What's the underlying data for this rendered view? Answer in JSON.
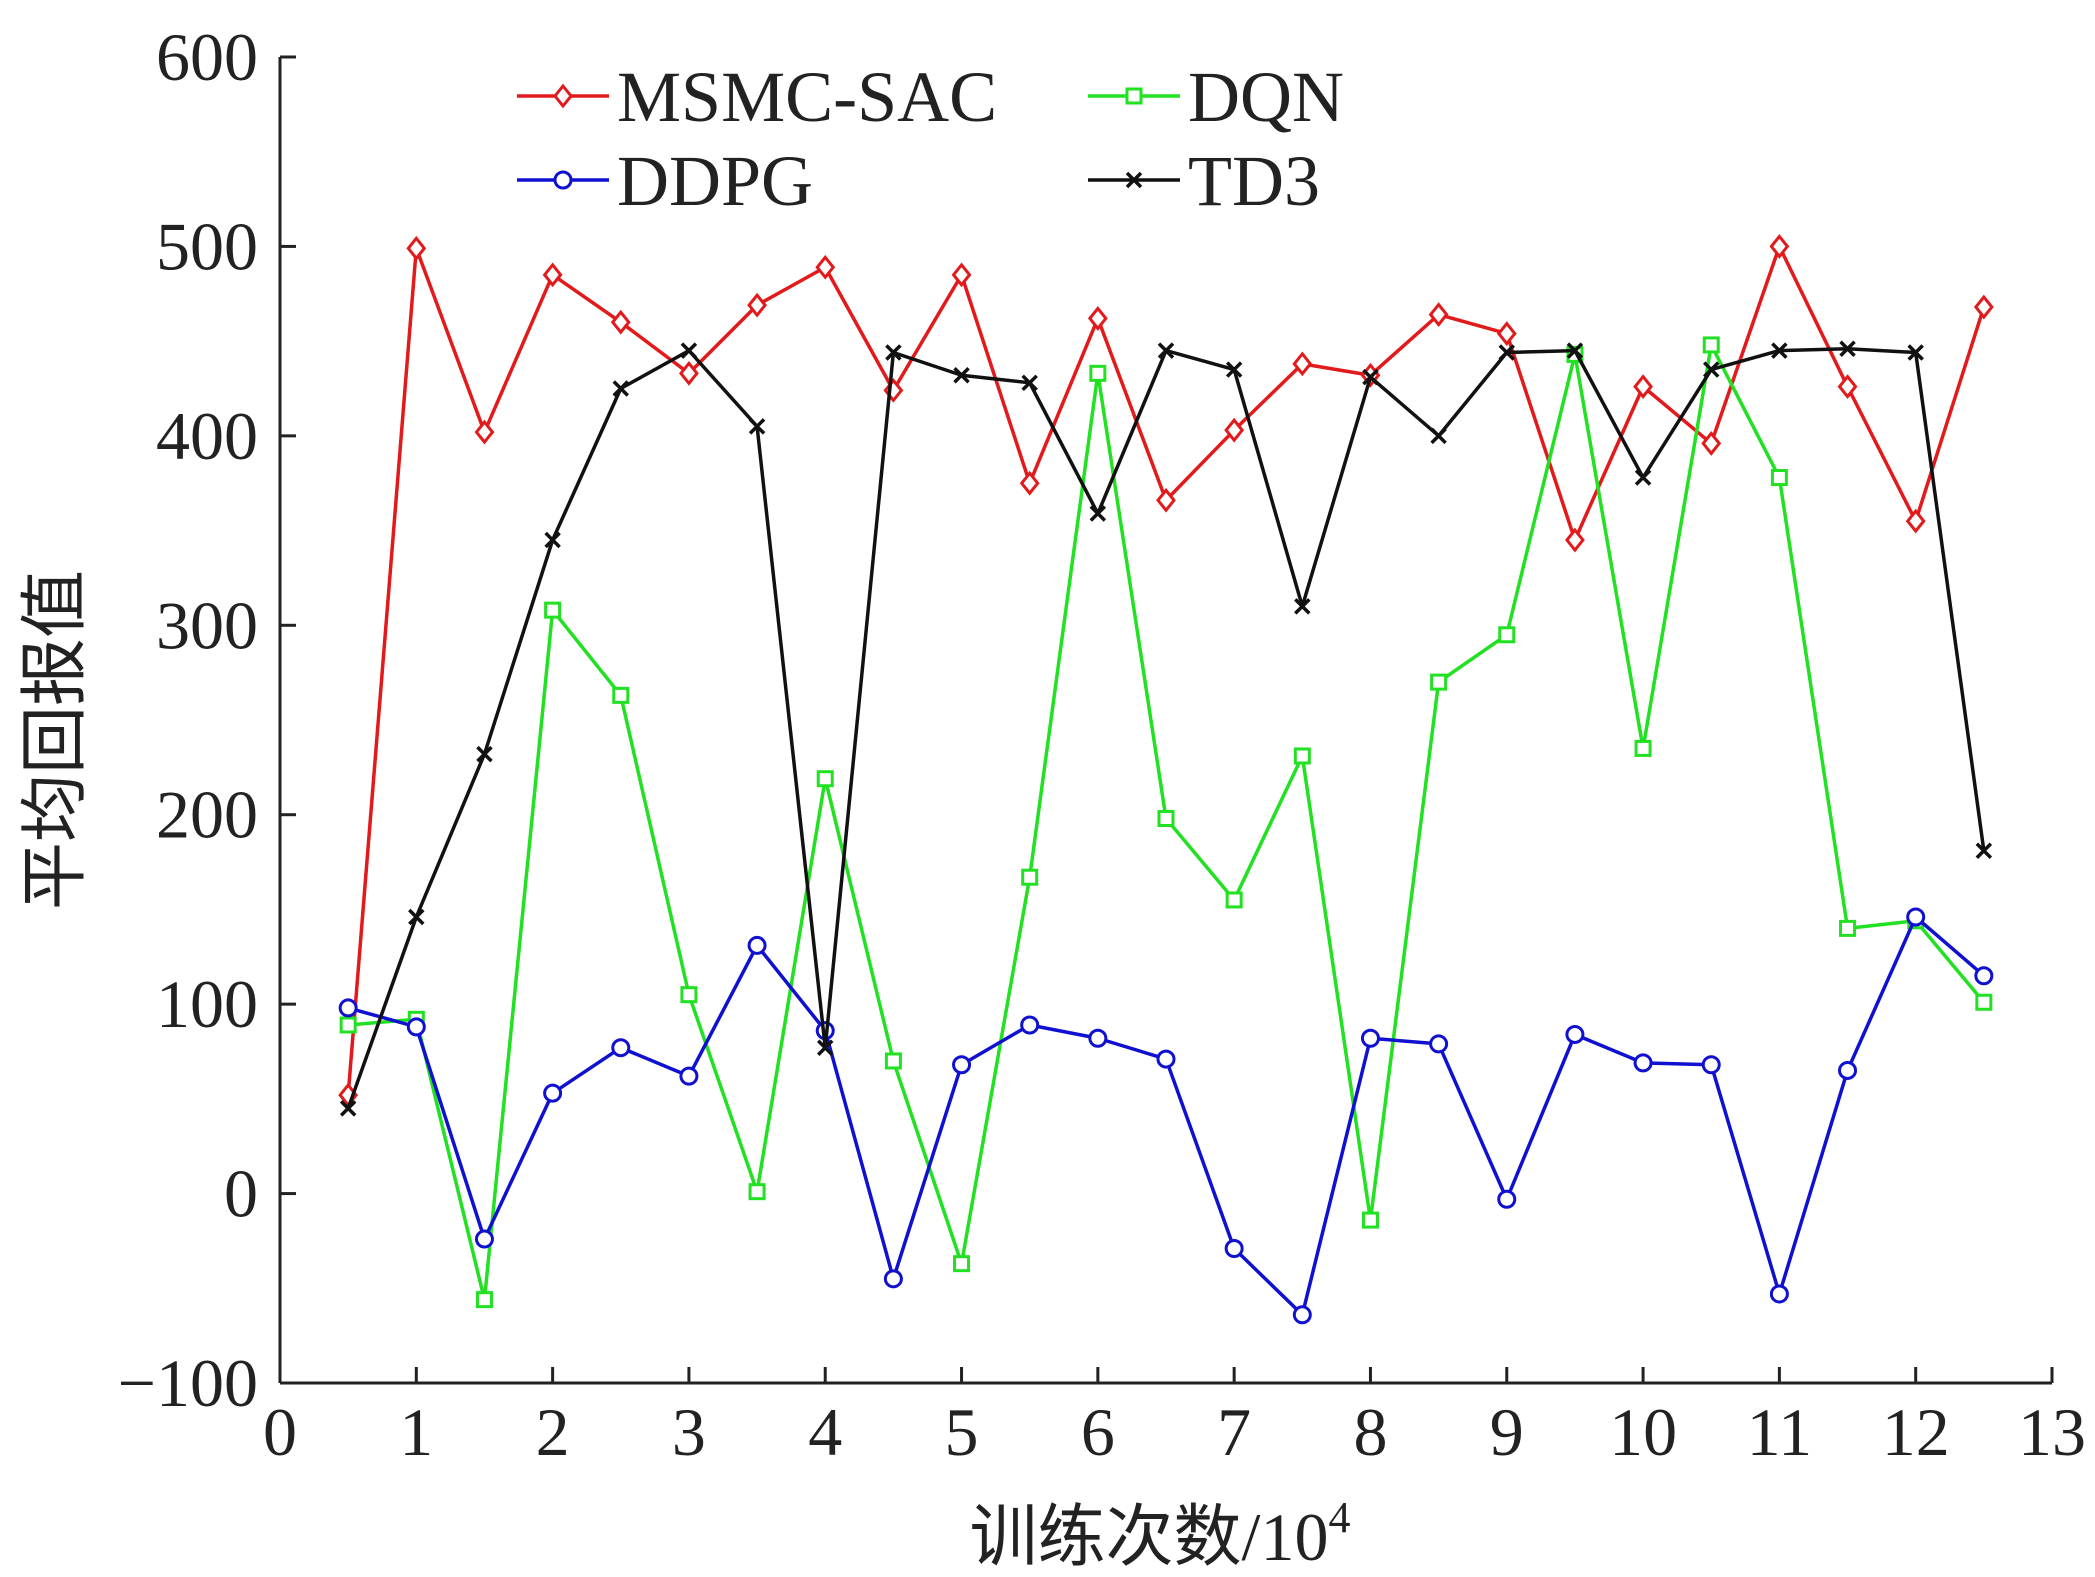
{
  "chart_data": {
    "type": "line",
    "xlabel": "训练次数/10⁴",
    "ylabel": "平均回报值",
    "xlim": [
      0,
      13
    ],
    "ylim": [
      -100,
      600
    ],
    "xticks": [
      0,
      1,
      2,
      3,
      4,
      5,
      6,
      7,
      8,
      9,
      10,
      11,
      12,
      13
    ],
    "yticks": [
      -100,
      0,
      100,
      200,
      300,
      400,
      500,
      600
    ],
    "xtick_labels": [
      "0",
      "1",
      "2",
      "3",
      "4",
      "5",
      "6",
      "7",
      "8",
      "9",
      "10",
      "11",
      "12",
      "13"
    ],
    "ytick_labels": [
      "−100",
      "0",
      "100",
      "200",
      "300",
      "400",
      "500",
      "600"
    ],
    "grid": false,
    "legend_position": "top",
    "x": [
      0.5,
      1,
      1.5,
      2,
      2.5,
      3,
      3.5,
      4,
      4.5,
      5,
      5.5,
      6,
      6.5,
      7,
      7.5,
      8,
      8.5,
      9,
      9.5,
      10,
      10.5,
      11,
      11.5,
      12,
      12.5
    ],
    "series": [
      {
        "name": "MSMC-SAC",
        "color": "#e31a1c",
        "marker": "diamond",
        "values": [
          52,
          499,
          402,
          485,
          460,
          433,
          469,
          489,
          424,
          485,
          375,
          462,
          366,
          403,
          438,
          432,
          464,
          454,
          345,
          426,
          396,
          500,
          426,
          355,
          468
        ]
      },
      {
        "name": "DQN",
        "color": "#22e022",
        "marker": "square",
        "values": [
          89,
          92,
          -56,
          308,
          263,
          105,
          1,
          219,
          70,
          -37,
          167,
          433,
          198,
          155,
          231,
          -14,
          270,
          295,
          443,
          235,
          448,
          378,
          140,
          144,
          101
        ]
      },
      {
        "name": "DDPG",
        "color": "#1010d0",
        "marker": "circle",
        "values": [
          98,
          88,
          -24,
          53,
          77,
          62,
          131,
          86,
          -45,
          68,
          89,
          82,
          71,
          -29,
          -64,
          82,
          79,
          -3,
          84,
          69,
          68,
          -53,
          65,
          146,
          115
        ]
      },
      {
        "name": "TD3",
        "color": "#111111",
        "marker": "x",
        "values": [
          45,
          146,
          232,
          345,
          425,
          445,
          405,
          77,
          444,
          432,
          428,
          359,
          445,
          435,
          310,
          431,
          400,
          444,
          445,
          378,
          435,
          445,
          446,
          444,
          181
        ]
      }
    ]
  }
}
